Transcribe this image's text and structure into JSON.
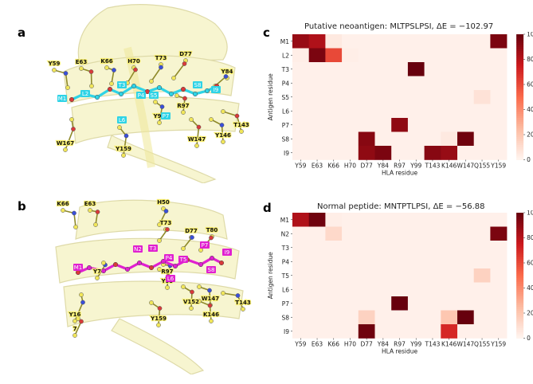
{
  "panels": {
    "a": {
      "label": "a"
    },
    "b": {
      "label": "b"
    },
    "c": {
      "label": "c"
    },
    "d": {
      "label": "d"
    }
  },
  "structure_a": {
    "hla_labels": [
      "Y59",
      "E63",
      "K66",
      "H70",
      "T73",
      "D77",
      "Y84",
      "R97",
      "Y99",
      "T143",
      "Y146",
      "W147",
      "Y159",
      "W167"
    ],
    "peptide_labels": [
      "M1",
      "L2",
      "T3",
      "P4",
      "S5",
      "L6",
      "P7",
      "S8",
      "I9"
    ],
    "peptide_color": "#2ed3e6"
  },
  "structure_b": {
    "hla_labels": [
      "K66",
      "E63",
      "H50",
      "T73",
      "D77",
      "T80",
      "Y7",
      "Y99",
      "R97",
      "V152",
      "W147",
      "K146",
      "T143",
      "Y159",
      "Y16",
      "7"
    ],
    "peptide_labels": [
      "M1",
      "N2",
      "T3",
      "P4",
      "T5",
      "L6",
      "P7",
      "S8",
      "I9"
    ],
    "peptide_color": "#e020d0"
  },
  "chart_data": [
    {
      "type": "heatmap",
      "title": "Putative neoantigen: MLTPSLPSI, ΔE = −102.97",
      "xlabel": "HLA residue",
      "ylabel": "Antigen residue",
      "x": [
        "Y59",
        "E63",
        "K66",
        "H70",
        "D77",
        "Y84",
        "R97",
        "Y99",
        "T143",
        "K146",
        "W147",
        "Q155",
        "Y159"
      ],
      "y": [
        "M1",
        "L2",
        "T3",
        "P4",
        "S5",
        "L6",
        "P7",
        "S8",
        "I9"
      ],
      "values": [
        [
          88,
          82,
          5,
          2,
          2,
          2,
          2,
          2,
          2,
          2,
          2,
          2,
          95
        ],
        [
          3,
          95,
          60,
          3,
          2,
          2,
          2,
          2,
          2,
          2,
          2,
          2,
          2
        ],
        [
          2,
          2,
          2,
          2,
          2,
          2,
          2,
          100,
          2,
          2,
          2,
          2,
          2
        ],
        [
          2,
          2,
          2,
          2,
          2,
          2,
          2,
          2,
          2,
          2,
          2,
          2,
          2
        ],
        [
          2,
          2,
          2,
          2,
          2,
          2,
          2,
          2,
          2,
          2,
          2,
          8,
          2
        ],
        [
          2,
          2,
          2,
          2,
          2,
          2,
          2,
          2,
          2,
          2,
          2,
          2,
          2
        ],
        [
          2,
          2,
          2,
          2,
          2,
          2,
          90,
          2,
          2,
          2,
          2,
          2,
          2
        ],
        [
          2,
          2,
          2,
          2,
          92,
          2,
          2,
          2,
          2,
          5,
          98,
          2,
          2
        ],
        [
          2,
          2,
          2,
          2,
          90,
          95,
          2,
          2,
          92,
          88,
          2,
          2,
          2
        ]
      ],
      "colorbar": {
        "range": [
          0,
          100
        ],
        "ticks": [
          0,
          20,
          40,
          60,
          80,
          100
        ],
        "cmap": "Reds"
      }
    },
    {
      "type": "heatmap",
      "title": "Normal peptide: MNTPTLPSI, ΔE = −56.88",
      "xlabel": "HLA residue",
      "ylabel": "Antigen residue",
      "x": [
        "Y59",
        "E63",
        "K66",
        "H70",
        "D77",
        "Y84",
        "R97",
        "Y99",
        "T143",
        "K146",
        "W147",
        "Q155",
        "Y159"
      ],
      "y": [
        "M1",
        "N2",
        "T3",
        "P4",
        "T5",
        "L6",
        "P7",
        "S8",
        "I9"
      ],
      "values": [
        [
          82,
          98,
          3,
          2,
          2,
          2,
          2,
          2,
          2,
          2,
          2,
          2,
          2
        ],
        [
          2,
          2,
          12,
          2,
          2,
          2,
          2,
          2,
          2,
          2,
          2,
          2,
          95
        ],
        [
          2,
          2,
          2,
          2,
          2,
          2,
          2,
          2,
          2,
          2,
          2,
          2,
          2
        ],
        [
          2,
          2,
          2,
          2,
          2,
          2,
          2,
          2,
          2,
          2,
          2,
          2,
          2
        ],
        [
          2,
          2,
          2,
          2,
          2,
          2,
          2,
          2,
          2,
          2,
          2,
          15,
          2
        ],
        [
          2,
          2,
          2,
          2,
          2,
          2,
          2,
          2,
          2,
          2,
          2,
          2,
          2
        ],
        [
          2,
          2,
          2,
          2,
          2,
          2,
          100,
          2,
          2,
          2,
          2,
          2,
          2
        ],
        [
          2,
          2,
          2,
          2,
          15,
          2,
          2,
          2,
          2,
          20,
          100,
          2,
          2
        ],
        [
          2,
          2,
          2,
          2,
          98,
          2,
          2,
          2,
          2,
          70,
          2,
          2,
          2
        ]
      ],
      "colorbar": {
        "range": [
          0,
          100
        ],
        "ticks": [
          0,
          20,
          40,
          60,
          80,
          100
        ],
        "cmap": "Reds"
      }
    }
  ]
}
